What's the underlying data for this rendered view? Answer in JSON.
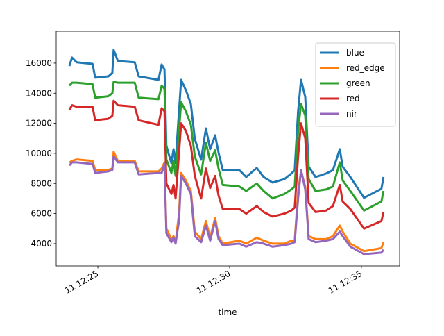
{
  "chart_data": {
    "type": "line",
    "xlabel": "time",
    "x": [
      743.92,
      744.02,
      744.2,
      744.8,
      744.9,
      745.4,
      745.55,
      745.6,
      745.76,
      746.4,
      746.55,
      747.3,
      747.42,
      747.53,
      747.6,
      747.79,
      747.87,
      747.95,
      748.08,
      748.16,
      748.34,
      748.53,
      748.68,
      748.92,
      749.1,
      749.26,
      749.45,
      749.58,
      749.74,
      750.37,
      750.63,
      751.03,
      751.29,
      751.63,
      752.08,
      752.34,
      752.47,
      752.6,
      752.71,
      752.87,
      753.0,
      753.26,
      753.66,
      753.92,
      754.18,
      754.29,
      754.58,
      755.1,
      755.76,
      755.84
    ],
    "series": [
      {
        "name": "blue",
        "color": "#1f77b4",
        "values": [
          15810,
          16370,
          16050,
          15950,
          15030,
          15120,
          15350,
          16880,
          16140,
          16050,
          15120,
          14890,
          15910,
          15580,
          10510,
          9350,
          10280,
          9350,
          12810,
          14890,
          14200,
          13280,
          10970,
          9580,
          11660,
          10280,
          11200,
          10050,
          8890,
          8890,
          8430,
          9030,
          8430,
          8060,
          8290,
          8660,
          8890,
          12810,
          14890,
          13740,
          9120,
          8430,
          8660,
          8890,
          10280,
          9120,
          8430,
          7050,
          7650,
          8430
        ]
      },
      {
        "name": "red_edge",
        "color": "#ff7f0e",
        "values": [
          9400,
          9500,
          9600,
          9500,
          8900,
          8900,
          9000,
          10100,
          9500,
          9500,
          8800,
          8800,
          9000,
          9400,
          5000,
          4300,
          4500,
          4100,
          6000,
          8700,
          8200,
          7500,
          4800,
          4300,
          5500,
          4400,
          5700,
          4500,
          4000,
          4200,
          4000,
          4400,
          4200,
          4000,
          4000,
          4200,
          4200,
          7500,
          8800,
          7800,
          4500,
          4300,
          4300,
          4500,
          5200,
          4800,
          4000,
          3500,
          3700,
          4100
        ]
      },
      {
        "name": "green",
        "color": "#2ca02c",
        "values": [
          14500,
          14700,
          14700,
          14600,
          13700,
          13800,
          14000,
          14750,
          14700,
          14700,
          13700,
          13600,
          14500,
          14300,
          9600,
          8700,
          9500,
          8500,
          11500,
          13400,
          12800,
          11900,
          9800,
          8600,
          10700,
          9500,
          10200,
          9000,
          7900,
          7800,
          7500,
          8000,
          7500,
          7000,
          7300,
          7600,
          7800,
          11500,
          13300,
          12500,
          8300,
          7500,
          7600,
          7800,
          9400,
          8200,
          7500,
          6200,
          6800,
          7500
        ]
      },
      {
        "name": "red",
        "color": "#d62728",
        "values": [
          12900,
          13200,
          13100,
          13100,
          12200,
          12300,
          12500,
          13500,
          13200,
          13100,
          12200,
          11900,
          13000,
          12800,
          8000,
          7300,
          7900,
          7000,
          10000,
          12000,
          11500,
          10500,
          8500,
          7000,
          9000,
          7700,
          8500,
          7200,
          6300,
          6300,
          6000,
          6500,
          6100,
          5800,
          6000,
          6200,
          6400,
          9800,
          12000,
          11000,
          6700,
          6100,
          6200,
          6500,
          7900,
          6800,
          6300,
          5000,
          5500,
          6100
        ]
      },
      {
        "name": "nir",
        "color": "#9467bd",
        "values": [
          9200,
          9400,
          9400,
          9300,
          8700,
          8800,
          8900,
          9800,
          9400,
          9400,
          8600,
          8700,
          8700,
          9300,
          4700,
          4100,
          4400,
          4000,
          5500,
          8500,
          8000,
          7300,
          4500,
          4100,
          5200,
          4200,
          5500,
          4300,
          3900,
          4000,
          3800,
          4100,
          4000,
          3800,
          3900,
          4000,
          4100,
          7000,
          8900,
          7600,
          4300,
          4100,
          4200,
          4300,
          4800,
          4500,
          3800,
          3300,
          3400,
          3600
        ]
      }
    ],
    "xlim": [
      743.42,
      756.45
    ],
    "xticks": [
      {
        "value": 745,
        "label": "11 12:25"
      },
      {
        "value": 750,
        "label": "11 12:30"
      },
      {
        "value": 755,
        "label": "11 12:35"
      }
    ],
    "ylim": [
      2520,
      18120
    ],
    "yticks": [
      4000,
      6000,
      8000,
      10000,
      12000,
      14000,
      16000
    ],
    "legend": "upper right"
  }
}
